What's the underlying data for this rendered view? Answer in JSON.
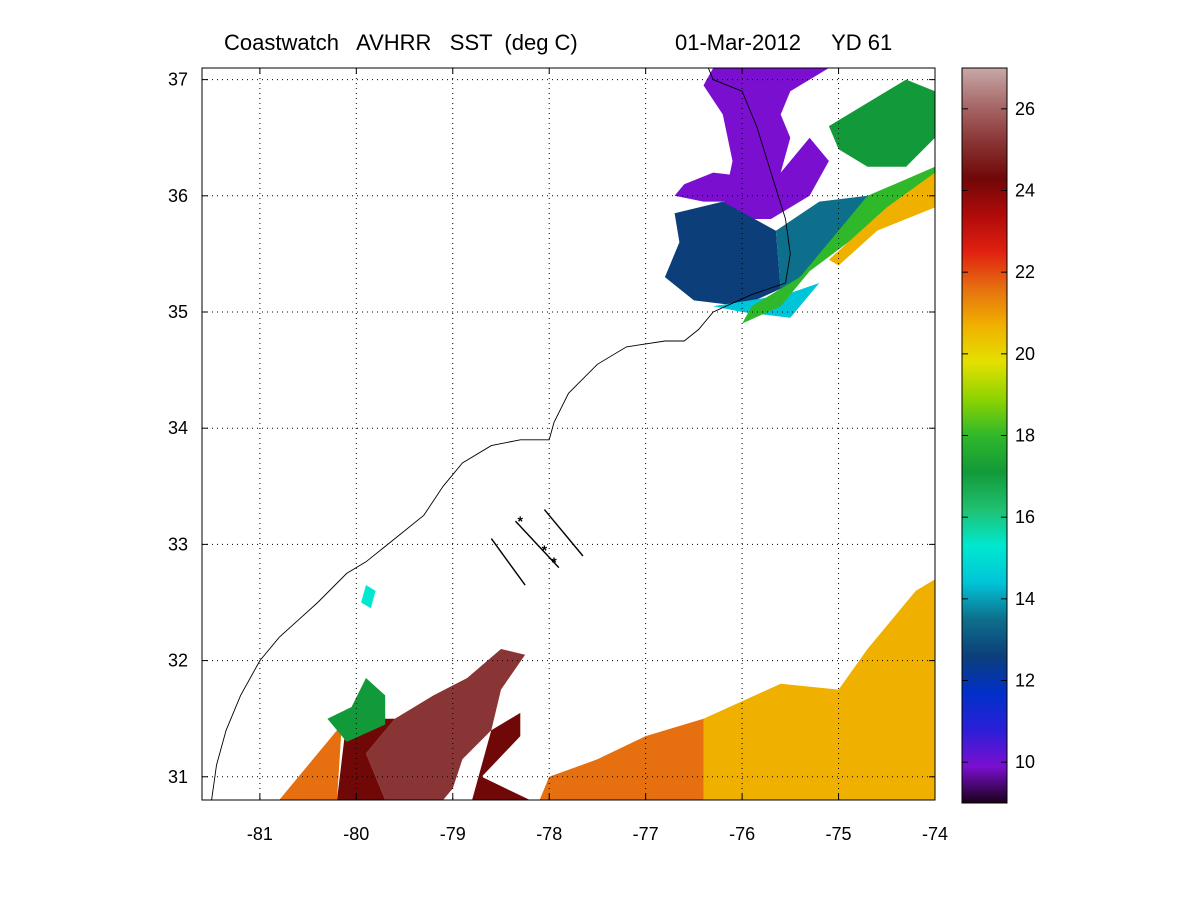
{
  "title": {
    "left": "Coastwatch   AVHRR   SST  (deg C)",
    "right": "01-Mar-2012     YD 61"
  },
  "map": {
    "lon_range": [
      -81.6,
      -74
    ],
    "lat_range": [
      30.8,
      37.1
    ],
    "x_ticks": [
      -81,
      -80,
      -79,
      -78,
      -77,
      -76,
      -75,
      -74
    ],
    "y_ticks": [
      31,
      32,
      33,
      34,
      35,
      36,
      37
    ],
    "grid": "dotted",
    "land_color": "#ffffff",
    "cloud_mask_color": "#ffffff"
  },
  "colorbar": {
    "range": [
      9,
      27
    ],
    "ticks": [
      10,
      12,
      14,
      16,
      18,
      20,
      22,
      24,
      26
    ],
    "stops": [
      "#1a001a",
      "#7a0fd0",
      "#2a1fd8",
      "#0030c8",
      "#0c3f7a",
      "#0e6f8c",
      "#00c4d8",
      "#00e8d0",
      "#20c070",
      "#129a3a",
      "#2fb82a",
      "#8ed400",
      "#e4e000",
      "#f0b000",
      "#e67010",
      "#e02010",
      "#b00a0a",
      "#700808",
      "#8a3535",
      "#a86a6a",
      "#c8a8a8"
    ]
  },
  "sst_regions": [
    {
      "name": "chesapeake-cold-water",
      "temp": 9.6,
      "poly": [
        [
          -76.3,
          37.1
        ],
        [
          -75.1,
          37.1
        ],
        [
          -75.5,
          36.9
        ],
        [
          -75.6,
          36.7
        ],
        [
          -75.5,
          36.5
        ],
        [
          -75.6,
          36.2
        ],
        [
          -75.8,
          36.0
        ],
        [
          -76.2,
          35.9
        ],
        [
          -76.1,
          36.3
        ],
        [
          -76.2,
          36.7
        ],
        [
          -76.4,
          36.95
        ]
      ]
    },
    {
      "name": "nearshore-cold-water",
      "temp": 10.3,
      "poly": [
        [
          -75.6,
          36.2
        ],
        [
          -75.3,
          36.5
        ],
        [
          -75.1,
          36.3
        ],
        [
          -75.3,
          36.0
        ],
        [
          -75.7,
          35.8
        ],
        [
          -76.0,
          35.8
        ],
        [
          -76.2,
          35.9
        ]
      ]
    },
    {
      "name": "albemarle-sound",
      "temp": 10.2,
      "poly": [
        [
          -76.6,
          36.1
        ],
        [
          -76.3,
          36.2
        ],
        [
          -75.8,
          36.15
        ],
        [
          -76.0,
          35.95
        ],
        [
          -76.4,
          35.95
        ],
        [
          -76.7,
          36.0
        ]
      ]
    },
    {
      "name": "pamlico-sound",
      "temp": 12.6,
      "poly": [
        [
          -76.7,
          35.85
        ],
        [
          -76.2,
          35.95
        ],
        [
          -75.65,
          35.7
        ],
        [
          -75.6,
          35.2
        ],
        [
          -76.0,
          35.05
        ],
        [
          -76.5,
          35.1
        ],
        [
          -76.8,
          35.3
        ],
        [
          -76.65,
          35.6
        ]
      ]
    },
    {
      "name": "shelf-water-north",
      "temp": 13.8,
      "poly": [
        [
          -75.65,
          35.7
        ],
        [
          -75.2,
          35.95
        ],
        [
          -74.7,
          36.0
        ],
        [
          -74.9,
          35.7
        ],
        [
          -75.4,
          35.3
        ],
        [
          -75.55,
          35.15
        ],
        [
          -75.6,
          35.2
        ]
      ]
    },
    {
      "name": "shelf-water-cape",
      "temp": 14.8,
      "poly": [
        [
          -75.55,
          35.15
        ],
        [
          -75.2,
          35.25
        ],
        [
          -75.5,
          34.95
        ],
        [
          -76.0,
          35.0
        ],
        [
          -76.3,
          35.05
        ]
      ]
    },
    {
      "name": "offshore-north",
      "temp": 16.8,
      "poly": [
        [
          -75.1,
          36.6
        ],
        [
          -74.3,
          37.0
        ],
        [
          -74.0,
          36.9
        ],
        [
          -74.0,
          36.5
        ],
        [
          -74.3,
          36.25
        ],
        [
          -74.7,
          36.25
        ],
        [
          -75.0,
          36.4
        ]
      ]
    },
    {
      "name": "shelf-break-green",
      "temp": 17.6,
      "poly": [
        [
          -74.7,
          36.0
        ],
        [
          -74.0,
          36.25
        ],
        [
          -74.0,
          36.15
        ],
        [
          -74.3,
          36.0
        ],
        [
          -74.9,
          35.6
        ],
        [
          -75.3,
          35.35
        ],
        [
          -75.6,
          35.05
        ],
        [
          -76.0,
          34.9
        ],
        [
          -75.9,
          35.05
        ],
        [
          -75.4,
          35.3
        ]
      ]
    },
    {
      "name": "gulf-stream-edge",
      "temp": 20.8,
      "poly": [
        [
          -74.0,
          36.2
        ],
        [
          -74.0,
          35.9
        ],
        [
          -74.6,
          35.7
        ],
        [
          -75.0,
          35.4
        ],
        [
          -75.1,
          35.45
        ],
        [
          -74.5,
          35.9
        ]
      ]
    },
    {
      "name": "south-warm-waters-yellow",
      "temp": 20.6,
      "poly": [
        [
          -76.4,
          31.5
        ],
        [
          -75.6,
          31.8
        ],
        [
          -75.0,
          31.75
        ],
        [
          -74.7,
          32.1
        ],
        [
          -74.2,
          32.6
        ],
        [
          -74.0,
          32.7
        ],
        [
          -74.0,
          30.8
        ],
        [
          -76.4,
          30.8
        ]
      ]
    },
    {
      "name": "south-warm-waters-orange",
      "temp": 22.0,
      "poly": [
        [
          -78.0,
          31.0
        ],
        [
          -77.5,
          31.15
        ],
        [
          -77.0,
          31.35
        ],
        [
          -76.4,
          31.5
        ],
        [
          -76.4,
          30.8
        ],
        [
          -78.1,
          30.8
        ]
      ]
    },
    {
      "name": "gulf-stream-core",
      "temp": 25.5,
      "poly": [
        [
          -79.6,
          31.5
        ],
        [
          -79.2,
          31.7
        ],
        [
          -78.85,
          31.85
        ],
        [
          -78.5,
          32.1
        ],
        [
          -78.25,
          32.05
        ],
        [
          -78.5,
          31.75
        ],
        [
          -78.6,
          31.4
        ],
        [
          -78.9,
          31.15
        ],
        [
          -79.0,
          30.9
        ],
        [
          -79.1,
          30.8
        ],
        [
          -79.7,
          30.8
        ],
        [
          -79.9,
          31.2
        ]
      ]
    },
    {
      "name": "gulf-stream-west-red",
      "temp": 24.0,
      "poly": [
        [
          -80.1,
          31.5
        ],
        [
          -79.6,
          31.5
        ],
        [
          -79.9,
          31.2
        ],
        [
          -79.7,
          30.8
        ],
        [
          -80.2,
          30.8
        ]
      ]
    },
    {
      "name": "gulf-stream-dark-red",
      "temp": 24.0,
      "poly": [
        [
          -78.6,
          31.4
        ],
        [
          -78.3,
          31.55
        ],
        [
          -78.3,
          31.35
        ],
        [
          -78.7,
          31.0
        ],
        [
          -78.2,
          30.8
        ],
        [
          -78.8,
          30.8
        ]
      ]
    },
    {
      "name": "nearshore-florida",
      "temp": 22.0,
      "poly": [
        [
          -80.15,
          31.45
        ],
        [
          -80.2,
          30.8
        ],
        [
          -80.8,
          30.8
        ],
        [
          -80.5,
          31.1
        ]
      ]
    },
    {
      "name": "south-cape-green",
      "temp": 17.0,
      "poly": [
        [
          -79.9,
          31.85
        ],
        [
          -79.7,
          31.7
        ],
        [
          -79.7,
          31.45
        ],
        [
          -80.1,
          31.3
        ],
        [
          -80.3,
          31.5
        ],
        [
          -80.05,
          31.6
        ]
      ]
    },
    {
      "name": "cyan-patch",
      "temp": 15.0,
      "poly": [
        [
          -79.9,
          32.65
        ],
        [
          -79.8,
          32.6
        ],
        [
          -79.85,
          32.45
        ],
        [
          -79.95,
          32.5
        ]
      ]
    }
  ],
  "coastline": [
    [
      -81.5,
      30.8
    ],
    [
      -81.45,
      31.1
    ],
    [
      -81.35,
      31.4
    ],
    [
      -81.2,
      31.7
    ],
    [
      -81.0,
      32.0
    ],
    [
      -80.8,
      32.2
    ],
    [
      -80.6,
      32.35
    ],
    [
      -80.4,
      32.5
    ],
    [
      -80.1,
      32.75
    ],
    [
      -79.9,
      32.85
    ],
    [
      -79.6,
      33.05
    ],
    [
      -79.3,
      33.25
    ],
    [
      -79.1,
      33.5
    ],
    [
      -78.9,
      33.7
    ],
    [
      -78.6,
      33.85
    ],
    [
      -78.3,
      33.9
    ],
    [
      -78.0,
      33.9
    ],
    [
      -77.95,
      34.05
    ],
    [
      -77.8,
      34.3
    ],
    [
      -77.5,
      34.55
    ],
    [
      -77.2,
      34.7
    ],
    [
      -76.8,
      34.75
    ],
    [
      -76.6,
      34.75
    ],
    [
      -76.45,
      34.85
    ],
    [
      -76.3,
      35.0
    ],
    [
      -75.9,
      35.15
    ],
    [
      -75.55,
      35.25
    ],
    [
      -75.5,
      35.5
    ],
    [
      -75.55,
      35.8
    ],
    [
      -75.7,
      36.2
    ],
    [
      -75.85,
      36.6
    ],
    [
      -76.0,
      36.9
    ],
    [
      -76.3,
      37.0
    ],
    [
      -76.35,
      37.1
    ]
  ],
  "sections": [
    {
      "from": [
        -78.6,
        33.05
      ],
      "to": [
        -78.25,
        32.65
      ]
    },
    {
      "from": [
        -78.35,
        33.2
      ],
      "to": [
        -77.9,
        32.8
      ]
    },
    {
      "from": [
        -78.05,
        33.3
      ],
      "to": [
        -77.65,
        32.9
      ]
    }
  ],
  "stations": [
    [
      -78.3,
      33.2
    ],
    [
      -78.05,
      32.95
    ],
    [
      -77.95,
      32.85
    ]
  ]
}
